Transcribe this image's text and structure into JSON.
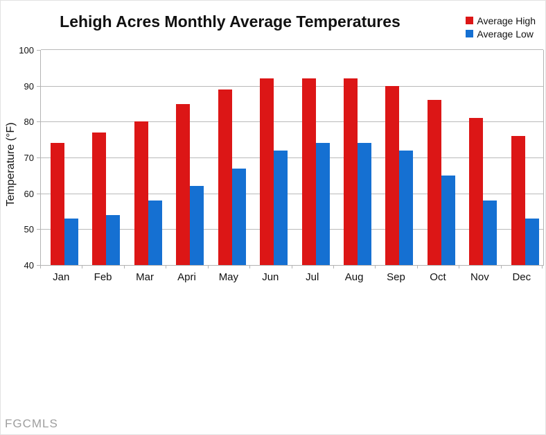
{
  "watermark": "FGCMLS",
  "chart_data": {
    "type": "bar",
    "title": "Lehigh Acres Monthly Average Temperatures",
    "xlabel": "",
    "ylabel": "Temperature (°F)",
    "categories": [
      "Jan",
      "Feb",
      "Mar",
      "Apri",
      "May",
      "Jun",
      "Jul",
      "Aug",
      "Sep",
      "Oct",
      "Nov",
      "Dec"
    ],
    "series": [
      {
        "name": "Average High",
        "color": "#dc1616",
        "values": [
          74,
          77,
          80,
          85,
          89,
          92,
          92,
          92,
          90,
          86,
          81,
          76
        ]
      },
      {
        "name": "Average Low",
        "color": "#1570d2",
        "values": [
          53,
          54,
          58,
          62,
          67,
          72,
          74,
          74,
          72,
          65,
          58,
          53
        ]
      }
    ],
    "ylim": [
      40,
      100
    ],
    "y_ticks": [
      100,
      90,
      80,
      70,
      60,
      50,
      40
    ],
    "grid": true,
    "legend_position": "top-right",
    "gridline_color": "#b9b9b9"
  }
}
